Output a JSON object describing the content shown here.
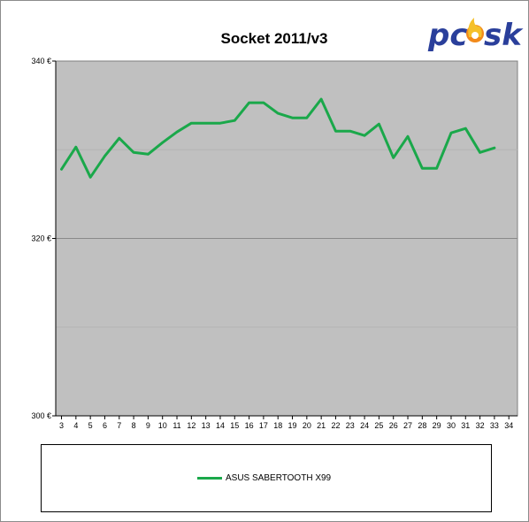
{
  "chart_data": {
    "type": "line",
    "title": "Socket 2011/v3",
    "currency_suffix": " €",
    "x": [
      3,
      4,
      5,
      6,
      7,
      8,
      9,
      10,
      11,
      12,
      13,
      14,
      15,
      16,
      17,
      18,
      19,
      20,
      21,
      22,
      23,
      24,
      25,
      26,
      27,
      28,
      29,
      30,
      31,
      32,
      33
    ],
    "x_ticks": [
      3,
      4,
      5,
      6,
      7,
      8,
      9,
      10,
      11,
      12,
      13,
      14,
      15,
      16,
      17,
      18,
      19,
      20,
      21,
      22,
      23,
      24,
      25,
      26,
      27,
      28,
      29,
      30,
      31,
      32,
      33,
      34
    ],
    "y_ticks": [
      300,
      320,
      340
    ],
    "ylim": [
      300,
      340
    ],
    "grid": true,
    "legend_position": "bottom",
    "series": [
      {
        "name": "ASUS SABERTOOTH X99",
        "color": "#1aa84a",
        "values": [
          327.8,
          330.3,
          326.9,
          329.3,
          331.3,
          329.7,
          329.5,
          330.8,
          332.0,
          333.0,
          333.0,
          333.0,
          333.3,
          335.3,
          335.3,
          334.1,
          333.6,
          333.6,
          335.7,
          332.1,
          332.1,
          331.6,
          332.9,
          329.1,
          331.5,
          327.9,
          327.9,
          331.9,
          332.4,
          329.7,
          330.2
        ]
      }
    ]
  },
  "logo": {
    "text_pc": "pc",
    "text_sk": "sk"
  },
  "colors": {
    "plot_bg": "#c0c0c0",
    "gridline": "#8a8a8a",
    "border": "#8c8c8c"
  }
}
